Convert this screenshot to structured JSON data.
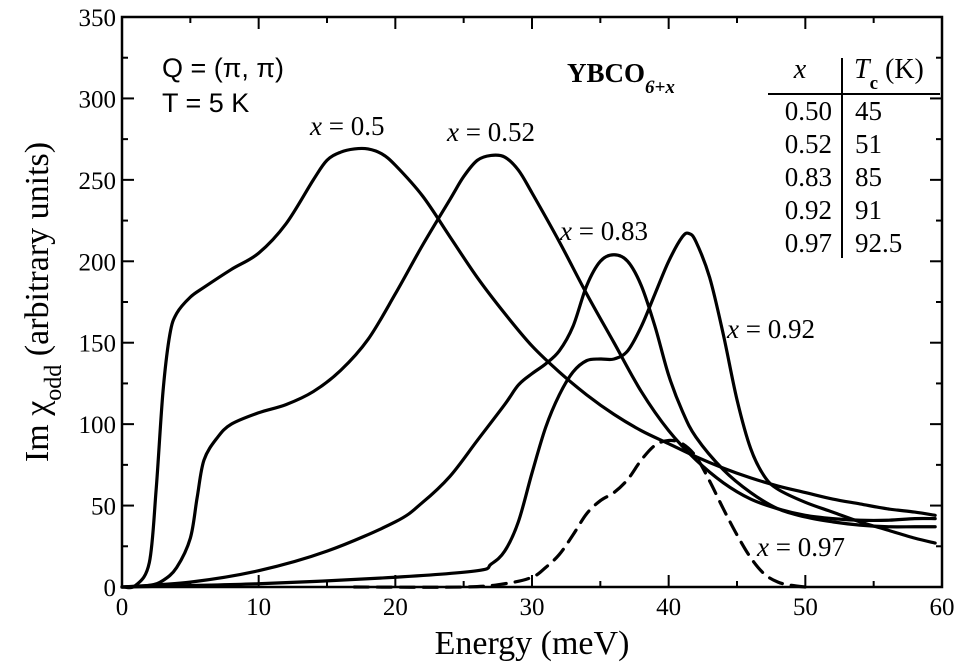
{
  "chart_data": {
    "type": "line",
    "xlabel": "Energy (meV)",
    "ylabel": {
      "main": "Im χ",
      "sub": "odd",
      "rest": " (arbitrary units)"
    },
    "xlim": [
      0,
      60
    ],
    "ylim": [
      0,
      350
    ],
    "x_ticks": [
      0,
      10,
      20,
      30,
      40,
      50,
      60
    ],
    "y_ticks": [
      0,
      50,
      100,
      150,
      200,
      250,
      300,
      350
    ],
    "annotations": {
      "q_vector": "Q = (π, π)",
      "temperature": "T = 5 K",
      "compound": {
        "main": "YBCO",
        "sub": "6+x"
      }
    },
    "table": {
      "header_x": "x",
      "header_tc": {
        "main": "T",
        "sub": "c",
        "rest": " (K)"
      },
      "rows": [
        {
          "x": "0.50",
          "tc": "45"
        },
        {
          "x": "0.52",
          "tc": "51"
        },
        {
          "x": "0.83",
          "tc": "85"
        },
        {
          "x": "0.92",
          "tc": "91"
        },
        {
          "x": "0.97",
          "tc": "92.5"
        }
      ]
    },
    "series": [
      {
        "name": "x = 0.5",
        "style": "solid",
        "points": [
          [
            0,
            0
          ],
          [
            1,
            1
          ],
          [
            2,
            15
          ],
          [
            2.5,
            60
          ],
          [
            3,
            120
          ],
          [
            3.5,
            155
          ],
          [
            4,
            168
          ],
          [
            5,
            178
          ],
          [
            6,
            184
          ],
          [
            8,
            195
          ],
          [
            10,
            205
          ],
          [
            12,
            223
          ],
          [
            14,
            250
          ],
          [
            15,
            262
          ],
          [
            16,
            267
          ],
          [
            17,
            269
          ],
          [
            18,
            269
          ],
          [
            19,
            266
          ],
          [
            20,
            259
          ],
          [
            22,
            240
          ],
          [
            24,
            215
          ],
          [
            26,
            190
          ],
          [
            28,
            168
          ],
          [
            30,
            148
          ],
          [
            32,
            132
          ],
          [
            34,
            118
          ],
          [
            36,
            106
          ],
          [
            38,
            96
          ],
          [
            40,
            88
          ],
          [
            42,
            80
          ],
          [
            44,
            73
          ],
          [
            46,
            67
          ],
          [
            48,
            62
          ],
          [
            50,
            58
          ],
          [
            52,
            54
          ],
          [
            54,
            51
          ],
          [
            56,
            48
          ],
          [
            58,
            46
          ],
          [
            59.5,
            44
          ]
        ]
      },
      {
        "name": "x = 0.52",
        "style": "solid",
        "points": [
          [
            0,
            0
          ],
          [
            2,
            1
          ],
          [
            3,
            4
          ],
          [
            4,
            12
          ],
          [
            5,
            30
          ],
          [
            5.5,
            55
          ],
          [
            6,
            78
          ],
          [
            7,
            92
          ],
          [
            8,
            100
          ],
          [
            10,
            107
          ],
          [
            12,
            112
          ],
          [
            14,
            120
          ],
          [
            16,
            133
          ],
          [
            18,
            152
          ],
          [
            20,
            180
          ],
          [
            22,
            210
          ],
          [
            24,
            238
          ],
          [
            25,
            252
          ],
          [
            26,
            262
          ],
          [
            27,
            265
          ],
          [
            28,
            264
          ],
          [
            29,
            256
          ],
          [
            30,
            242
          ],
          [
            32,
            212
          ],
          [
            34,
            180
          ],
          [
            36,
            150
          ],
          [
            38,
            120
          ],
          [
            40,
            96
          ],
          [
            42,
            78
          ],
          [
            44,
            64
          ],
          [
            46,
            54
          ],
          [
            48,
            48
          ],
          [
            50,
            44
          ],
          [
            52,
            42
          ],
          [
            54,
            41
          ],
          [
            56,
            41
          ],
          [
            58,
            42
          ],
          [
            59.5,
            42
          ]
        ]
      },
      {
        "name": "x = 0.83",
        "style": "solid",
        "points": [
          [
            0,
            0
          ],
          [
            5,
            3
          ],
          [
            10,
            10
          ],
          [
            15,
            22
          ],
          [
            20,
            40
          ],
          [
            22,
            52
          ],
          [
            24,
            68
          ],
          [
            26,
            90
          ],
          [
            28,
            112
          ],
          [
            29,
            124
          ],
          [
            30,
            131
          ],
          [
            31,
            137
          ],
          [
            32,
            145
          ],
          [
            33,
            160
          ],
          [
            34,
            185
          ],
          [
            35,
            200
          ],
          [
            36,
            204
          ],
          [
            37,
            200
          ],
          [
            38,
            185
          ],
          [
            39,
            160
          ],
          [
            40,
            130
          ],
          [
            41,
            108
          ],
          [
            42,
            92
          ],
          [
            44,
            72
          ],
          [
            46,
            58
          ],
          [
            48,
            48
          ],
          [
            50,
            43
          ],
          [
            52,
            40
          ],
          [
            54,
            38
          ],
          [
            56,
            37
          ],
          [
            58,
            37
          ],
          [
            59.5,
            37
          ]
        ]
      },
      {
        "name": "x = 0.92",
        "style": "solid",
        "points": [
          [
            0,
            0
          ],
          [
            10,
            2
          ],
          [
            20,
            6
          ],
          [
            26,
            10
          ],
          [
            27,
            14
          ],
          [
            28,
            22
          ],
          [
            29,
            40
          ],
          [
            30,
            70
          ],
          [
            31,
            98
          ],
          [
            32,
            118
          ],
          [
            33,
            132
          ],
          [
            34,
            139
          ],
          [
            35,
            140
          ],
          [
            36,
            140
          ],
          [
            37,
            145
          ],
          [
            38,
            160
          ],
          [
            39,
            180
          ],
          [
            40,
            200
          ],
          [
            41,
            215
          ],
          [
            41.5,
            217
          ],
          [
            42,
            212
          ],
          [
            43,
            190
          ],
          [
            44,
            155
          ],
          [
            45,
            115
          ],
          [
            46,
            85
          ],
          [
            47,
            68
          ],
          [
            48,
            60
          ],
          [
            50,
            52
          ],
          [
            52,
            46
          ],
          [
            54,
            40
          ],
          [
            56,
            35
          ],
          [
            58,
            30
          ],
          [
            59.5,
            27
          ]
        ]
      },
      {
        "name": "x = 0.97",
        "style": "dashed",
        "points": [
          [
            17,
            0
          ],
          [
            25,
            0
          ],
          [
            28,
            2
          ],
          [
            30,
            6
          ],
          [
            31,
            12
          ],
          [
            32,
            20
          ],
          [
            33,
            32
          ],
          [
            34,
            45
          ],
          [
            35,
            53
          ],
          [
            36,
            58
          ],
          [
            37,
            66
          ],
          [
            38,
            78
          ],
          [
            39,
            87
          ],
          [
            40,
            90
          ],
          [
            41,
            88
          ],
          [
            42,
            80
          ],
          [
            43,
            65
          ],
          [
            44,
            48
          ],
          [
            45,
            32
          ],
          [
            46,
            18
          ],
          [
            47,
            8
          ],
          [
            48,
            3
          ],
          [
            49,
            1
          ],
          [
            50,
            0
          ]
        ]
      }
    ],
    "curve_labels": [
      {
        "text": "x = 0.5",
        "var": "x",
        "rest": " = 0.5"
      },
      {
        "text": "x = 0.52",
        "var": "x",
        "rest": " = 0.52"
      },
      {
        "text": "x = 0.83",
        "var": "x",
        "rest": " = 0.83"
      },
      {
        "text": "x = 0.92",
        "var": "x",
        "rest": " = 0.92"
      },
      {
        "text": "x = 0.97",
        "var": "x",
        "rest": " = 0.97"
      }
    ]
  }
}
